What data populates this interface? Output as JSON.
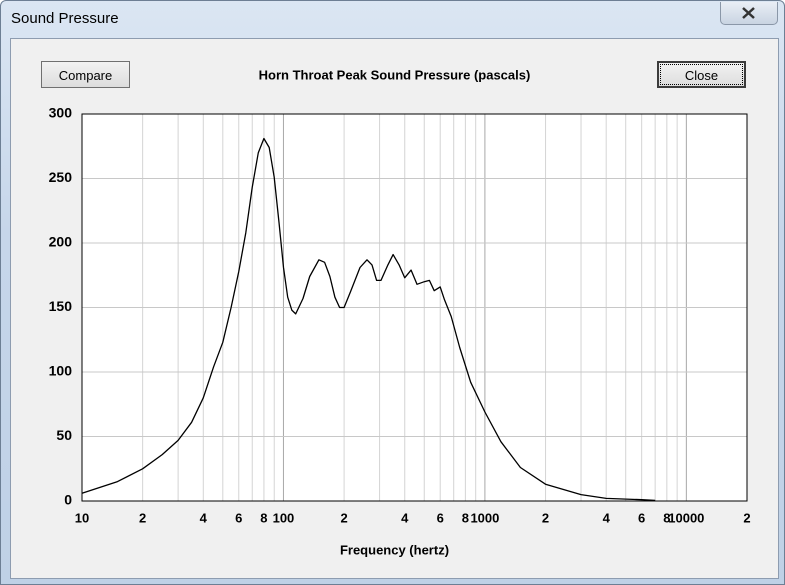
{
  "window": {
    "title": "Sound Pressure",
    "buttons": [
      "Compare",
      "Close"
    ]
  },
  "chart_data": {
    "type": "line",
    "title": "Horn Throat Peak Sound Pressure (pascals)",
    "x_label": "Frequency (hertz)",
    "xscale": "log",
    "grid": true,
    "xlim": [
      10,
      20000
    ],
    "ylim": [
      0,
      300
    ],
    "xticks": [
      10,
      {
        "value": 20,
        "label": "2"
      },
      {
        "value": 40,
        "label": "4"
      },
      {
        "value": 60,
        "label": "6"
      },
      {
        "value": 80,
        "label": "8"
      },
      100,
      {
        "value": 200,
        "label": "2"
      },
      {
        "value": 400,
        "label": "4"
      },
      {
        "value": 600,
        "label": "6"
      },
      {
        "value": 800,
        "label": "8"
      },
      1000,
      {
        "value": 2000,
        "label": "2"
      },
      {
        "value": 4000,
        "label": "4"
      },
      {
        "value": 6000,
        "label": "6"
      },
      {
        "value": 8000,
        "label": "8"
      },
      10000,
      {
        "value": 20000,
        "label": "2"
      }
    ],
    "x_minor_ticks": [
      30,
      50,
      70,
      90,
      300,
      500,
      700,
      900,
      3000,
      5000,
      7000,
      9000
    ],
    "yticks": [
      0,
      50,
      100,
      150,
      200,
      250,
      300
    ],
    "x": [
      10,
      15,
      20,
      25,
      30,
      35,
      40,
      45,
      50,
      55,
      60,
      65,
      70,
      75,
      80,
      85,
      90,
      95,
      100,
      105,
      110,
      115,
      125,
      135,
      150,
      160,
      170,
      180,
      190,
      200,
      215,
      240,
      260,
      275,
      290,
      305,
      330,
      350,
      375,
      400,
      430,
      460,
      500,
      530,
      560,
      600,
      630,
      680,
      750,
      850,
      1000,
      1200,
      1500,
      2000,
      3000,
      4000,
      6000,
      7000
    ],
    "series": [
      {
        "color": "#000000",
        "values": [
          6,
          15,
          25,
          36,
          47,
          61,
          80,
          104,
          123,
          150,
          178,
          208,
          243,
          270,
          281,
          274,
          251,
          216,
          181,
          158,
          148,
          145,
          157,
          174,
          187,
          185,
          174,
          158,
          150,
          150,
          162,
          181,
          187,
          183,
          171,
          171,
          183,
          191,
          183,
          173,
          179,
          168,
          170,
          171,
          163,
          166,
          156,
          143,
          119,
          92,
          69,
          46,
          26,
          13,
          5,
          2,
          1,
          0.5
        ]
      }
    ]
  }
}
